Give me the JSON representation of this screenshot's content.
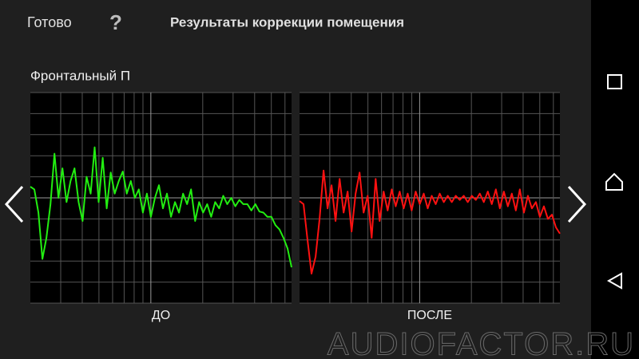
{
  "header": {
    "done": "Готово",
    "help": "?",
    "title": "Результаты коррекции помещения"
  },
  "section": "Фронтальный П",
  "charts": [
    {
      "label": "ДО",
      "color": "#22ee11",
      "values": [
        0.53,
        0.4,
        -0.7,
        -2.9,
        -1.9,
        -0.3,
        2.1,
        0,
        1.4,
        -0.2,
        0.8,
        1.4,
        -0.2,
        -1.1,
        1.0,
        0.2,
        2.4,
        -0.2,
        1.9,
        -0.5,
        1.2,
        0.2,
        0.8,
        1.25,
        0.2,
        0.8,
        0,
        0.4,
        -0.7,
        0.2,
        -0.9,
        0,
        0.6,
        -0.5,
        0.2,
        -0.9,
        -0.2,
        -0.7,
        0.2,
        -0.3,
        0.4,
        -1.1,
        -0.2,
        -0.7,
        -0.3,
        -0.9,
        -0.2,
        -0.5,
        0.1,
        -0.3,
        0,
        -0.4,
        -0.1,
        -0.3,
        -0.3,
        -0.6,
        -0.3,
        -0.65,
        -0.7,
        -0.9,
        -0.9,
        -1.3,
        -1.5,
        -1.9,
        -2.4,
        -3.3
      ]
    },
    {
      "label": "ПОСЛЕ",
      "color": "#ff1111",
      "values": [
        -0.15,
        -0.3,
        -2.0,
        -3.6,
        -2.8,
        -1.0,
        1.3,
        -0.5,
        0.6,
        -1.1,
        0.9,
        -0.7,
        0.3,
        -1.6,
        0.2,
        1.2,
        -0.7,
        0.1,
        -1.9,
        0.9,
        -1.1,
        0.3,
        -0.6,
        0.4,
        -0.4,
        0.3,
        -0.5,
        0.2,
        -0.6,
        0.3,
        -0.3,
        0.2,
        -0.5,
        0.1,
        -0.3,
        0.2,
        -0.2,
        0.1,
        -0.2,
        0.1,
        -0.1,
        0.1,
        -0.2,
        0.1,
        -0.1,
        0.2,
        -0.2,
        0.3,
        -0.3,
        0.4,
        -0.5,
        0.3,
        -0.4,
        0.2,
        -0.6,
        0.4,
        -0.7,
        0.1,
        -0.5,
        -0.2,
        -0.9,
        -0.4,
        -1.0,
        -0.8,
        -1.4,
        -1.7
      ]
    }
  ],
  "watermark": "AUDIOFACTOR.RU"
}
